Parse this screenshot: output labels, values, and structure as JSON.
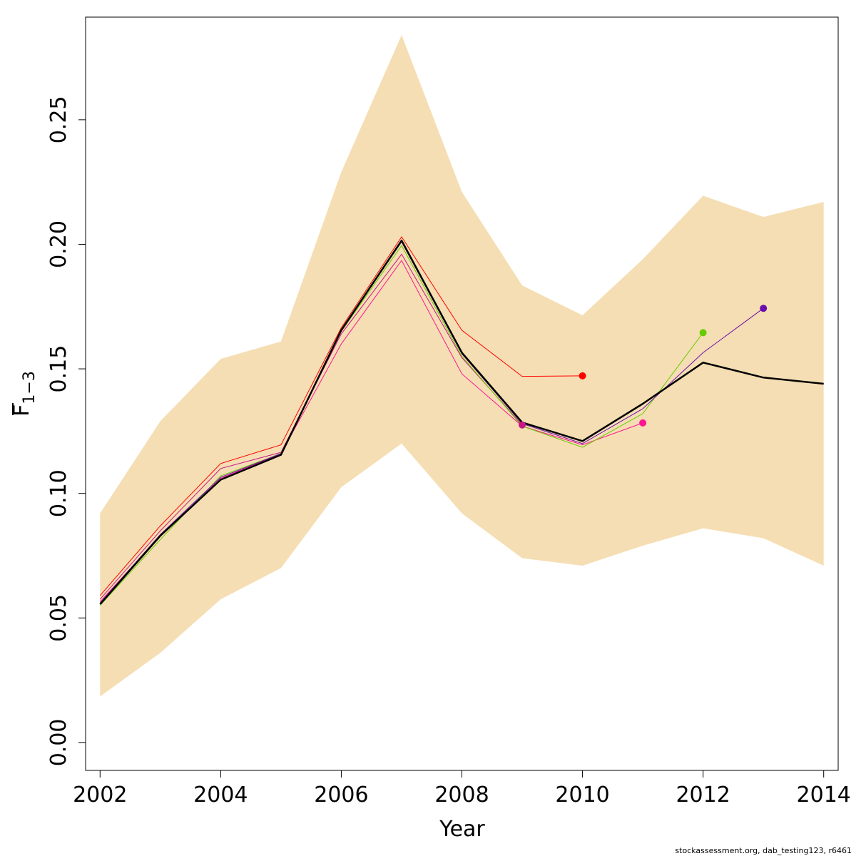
{
  "chart_data": {
    "type": "line",
    "xlabel": "Year",
    "ylabel": {
      "symbol": "F",
      "subscript": "1−3"
    },
    "xlim": [
      2001.76,
      2014.24
    ],
    "ylim": [
      -0.0112,
      0.2912
    ],
    "x_ticks": [
      "2002",
      "2004",
      "2006",
      "2008",
      "2010",
      "2012",
      "2014"
    ],
    "x_tick_values": [
      2002,
      2004,
      2006,
      2008,
      2010,
      2012,
      2014
    ],
    "y_ticks": [
      "0.00",
      "0.05",
      "0.10",
      "0.15",
      "0.20",
      "0.25"
    ],
    "y_tick_values": [
      0,
      0.05,
      0.1,
      0.15,
      0.2,
      0.25
    ],
    "band": {
      "color": "#f5deb3",
      "x": [
        2002,
        2003,
        2004,
        2005,
        2006,
        2007,
        2008,
        2009,
        2010,
        2011,
        2012,
        2013,
        2014
      ],
      "lower": [
        0.0185,
        0.036,
        0.0575,
        0.07,
        0.1025,
        0.12,
        0.092,
        0.074,
        0.071,
        0.079,
        0.086,
        0.082,
        0.071
      ],
      "upper": [
        0.092,
        0.129,
        0.154,
        0.161,
        0.229,
        0.284,
        0.221,
        0.1835,
        0.1715,
        0.194,
        0.2195,
        0.211,
        0.217
      ]
    },
    "main_series": {
      "color": "#000000",
      "x": [
        2002,
        2003,
        2004,
        2005,
        2006,
        2007,
        2008,
        2009,
        2010,
        2011,
        2012,
        2013,
        2014
      ],
      "values": [
        0.0555,
        0.083,
        0.1055,
        0.1155,
        0.1655,
        0.2015,
        0.1565,
        0.1285,
        0.121,
        0.136,
        0.1525,
        0.1465,
        0.144
      ]
    },
    "retro_series": [
      {
        "color": "#ff0000",
        "x": [
          2002,
          2003,
          2004,
          2005,
          2006,
          2007,
          2008,
          2009,
          2010
        ],
        "values": [
          0.059,
          0.087,
          0.112,
          0.1195,
          0.1665,
          0.203,
          0.1655,
          0.147,
          0.1472
        ]
      },
      {
        "color": "#c71585",
        "x": [
          2002,
          2003,
          2004,
          2005,
          2006,
          2007,
          2008,
          2009
        ],
        "values": [
          0.0575,
          0.085,
          0.11,
          0.1165,
          0.164,
          0.196,
          0.1545,
          0.1275
        ]
      },
      {
        "color": "#ff1493",
        "x": [
          2002,
          2003,
          2004,
          2005,
          2006,
          2007,
          2008,
          2009,
          2010,
          2011
        ],
        "values": [
          0.0565,
          0.083,
          0.106,
          0.116,
          0.16,
          0.1935,
          0.148,
          0.127,
          0.1195,
          0.1283
        ]
      },
      {
        "color": "#66cc00",
        "x": [
          2002,
          2003,
          2004,
          2005,
          2006,
          2007,
          2008,
          2009,
          2010,
          2011,
          2012
        ],
        "values": [
          0.055,
          0.0815,
          0.107,
          0.116,
          0.165,
          0.1995,
          0.155,
          0.127,
          0.1185,
          0.132,
          0.1645
        ]
      },
      {
        "color": "#6a0dad",
        "x": [
          2002,
          2003,
          2004,
          2005,
          2006,
          2007,
          2008,
          2009,
          2010,
          2011,
          2012,
          2013
        ],
        "values": [
          0.056,
          0.0835,
          0.1065,
          0.116,
          0.1655,
          0.201,
          0.156,
          0.128,
          0.12,
          0.134,
          0.1565,
          0.1743
        ]
      }
    ],
    "grid": false,
    "legend": "none"
  },
  "footer": "stockassessment.org, dab_testing123, r6461"
}
